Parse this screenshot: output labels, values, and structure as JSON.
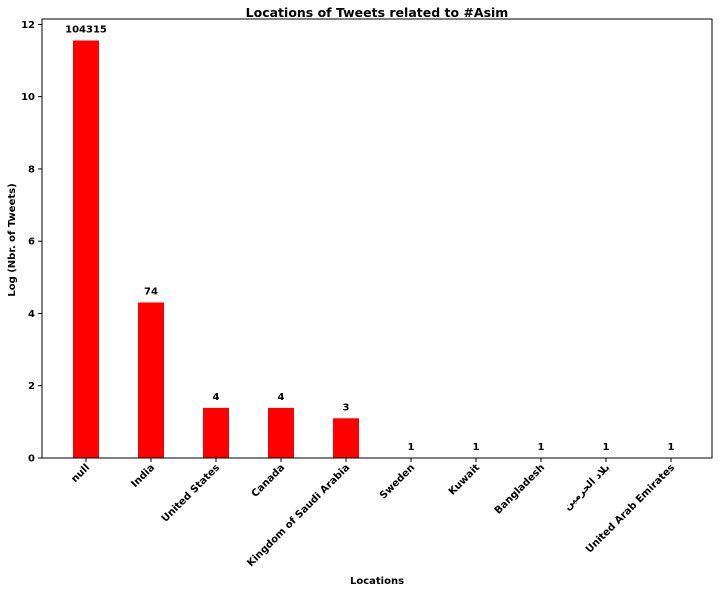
{
  "chart_data": {
    "type": "bar",
    "title": "Locations of Tweets related to #Asim",
    "xlabel": "Locations",
    "ylabel": "Log (Nbr. of Tweets)",
    "categories": [
      "null",
      "India",
      "United States",
      "Canada",
      "Kingdom of Saudi Arabia",
      "Sweden",
      "Kuwait",
      "Bangladesh",
      "بلاد الحرمين",
      "United Arab Emirates"
    ],
    "counts": [
      104315,
      74,
      4,
      4,
      3,
      1,
      1,
      1,
      1,
      1
    ],
    "values": [
      11.555,
      4.304,
      1.386,
      1.386,
      1.099,
      0,
      0,
      0,
      0,
      0
    ],
    "data_labels": [
      "104315",
      "74",
      "4",
      "4",
      "3",
      "1",
      "1",
      "1",
      "1",
      "1"
    ],
    "ylim": [
      0,
      12.15
    ],
    "yticks": [
      0,
      2,
      4,
      6,
      8,
      10,
      12
    ],
    "bar_color": "#ff0000",
    "grid": false,
    "legend": "none"
  }
}
